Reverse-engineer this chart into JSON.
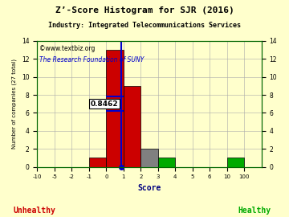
{
  "title": "Z’-Score Histogram for SJR (2016)",
  "subtitle": "Industry: Integrated Telecommunications Services",
  "watermark1": "©www.textbiz.org",
  "watermark2": "The Research Foundation of SUNY",
  "xlabel": "Score",
  "ylabel": "Number of companies (27 total)",
  "xtick_labels": [
    "-10",
    "-5",
    "-2",
    "-1",
    "0",
    "1",
    "2",
    "3",
    "4",
    "5",
    "6",
    "10",
    "100"
  ],
  "bin_heights": [
    0,
    0,
    0,
    1,
    13,
    9,
    2,
    1,
    0,
    0,
    0,
    1,
    0
  ],
  "bar_colors": [
    "#cc0000",
    "#cc0000",
    "#cc0000",
    "#cc0000",
    "#cc0000",
    "#cc0000",
    "#808080",
    "#00aa00",
    "#00aa00",
    "#00aa00",
    "#00aa00",
    "#00aa00",
    "#00aa00"
  ],
  "sjr_score_bin": 0.8462,
  "sjr_label": "0.8462",
  "ylim": [
    0,
    14
  ],
  "yticks": [
    0,
    2,
    4,
    6,
    8,
    10,
    12,
    14
  ],
  "bg_color": "#ffffcc",
  "grid_color": "#aaaaaa",
  "unhealthy_color": "#cc0000",
  "healthy_color": "#00aa00",
  "watermark1_color": "#000000",
  "watermark2_color": "#0000cc",
  "vline_color": "#0000cc",
  "annotation_bg": "#ffffff",
  "annotation_text_color": "#000000",
  "unhealthy_label": "Unhealthy",
  "healthy_label": "Healthy",
  "bar_edge_color": "#000000"
}
